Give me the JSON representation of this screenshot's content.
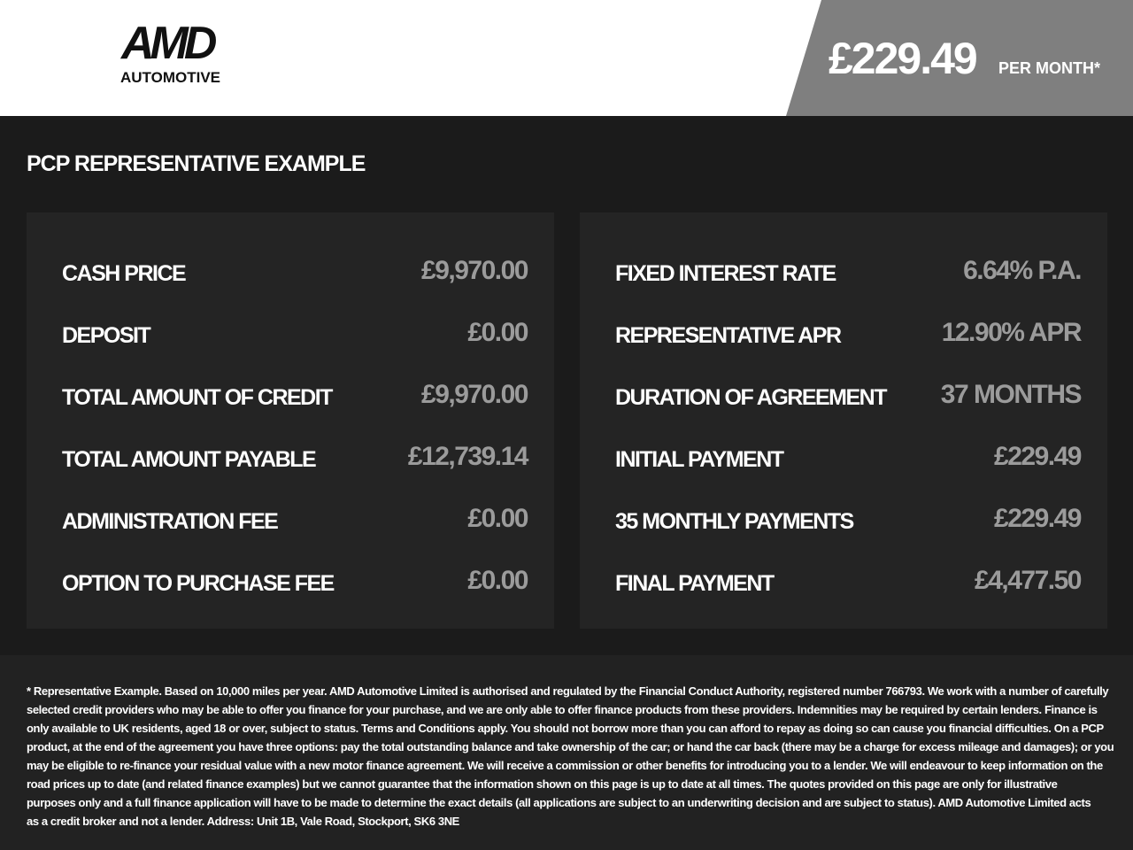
{
  "header": {
    "logo_text": "AMD",
    "logo_subtext": "AUTOMOTIVE",
    "price": "£229.49",
    "price_suffix": "PER MONTH*"
  },
  "colors": {
    "header_bg": "#ffffff",
    "price_banner": "#7f7f7f",
    "page_bg": "#1b1b1b",
    "panel_bg": "#242424",
    "value_text": "#9b9b9b"
  },
  "section_title": "PCP REPRESENTATIVE EXAMPLE",
  "left_panel": [
    {
      "label": "CASH PRICE",
      "value": "£9,970.00"
    },
    {
      "label": "DEPOSIT",
      "value": "£0.00"
    },
    {
      "label": "TOTAL AMOUNT OF CREDIT",
      "value": "£9,970.00"
    },
    {
      "label": "TOTAL AMOUNT PAYABLE",
      "value": "£12,739.14"
    },
    {
      "label": "ADMINISTRATION FEE",
      "value": "£0.00"
    },
    {
      "label": "OPTION TO PURCHASE FEE",
      "value": "£0.00"
    }
  ],
  "right_panel": [
    {
      "label": "FIXED INTEREST RATE",
      "value": "6.64% P.A."
    },
    {
      "label": "REPRESENTATIVE APR",
      "value": "12.90% APR"
    },
    {
      "label": "DURATION OF AGREEMENT",
      "value": "37 MONTHS"
    },
    {
      "label": "INITIAL PAYMENT",
      "value": "£229.49"
    },
    {
      "label": "35 MONTHLY PAYMENTS",
      "value": "£229.49"
    },
    {
      "label": "FINAL PAYMENT",
      "value": "£4,477.50"
    }
  ],
  "disclaimer_lines": [
    "* Representative Example. Based on 10,000 miles per year. AMD Automotive Limited is authorised and regulated by the Financial Conduct Authority, registered number 766793. We work with a number of carefully",
    "selected credit providers who may be able to offer you finance for your purchase, and we are only able to offer finance products from these providers. Indemnities may be required by certain lenders. Finance is",
    "only available to UK residents, aged 18 or over, subject to status. Terms and Conditions apply. You should not borrow more than you can afford to repay as doing so can cause you financial difficulties. On a PCP",
    "product, at the end of the agreement you have three options: pay the total outstanding balance and take ownership of the car; or hand the car back (there may be a charge for excess mileage and damages); or you",
    "may be eligible to re-finance your residual value with a new motor finance agreement. We will receive a commission or other benefits for introducing you to a lender. We will endeavour to keep information on the",
    "road prices up to date (and related finance examples) but we cannot guarantee that the information shown on this page is up to date at all times. The quotes provided on this page are only for illustrative",
    "purposes only and a full finance application will have to be made to determine the exact details (all applications are subject to an underwriting decision and are subject to status). AMD Automotive Limited acts",
    "as a credit broker and not a lender. Address: Unit 1B, Vale Road, Stockport, SK6 3NE"
  ]
}
